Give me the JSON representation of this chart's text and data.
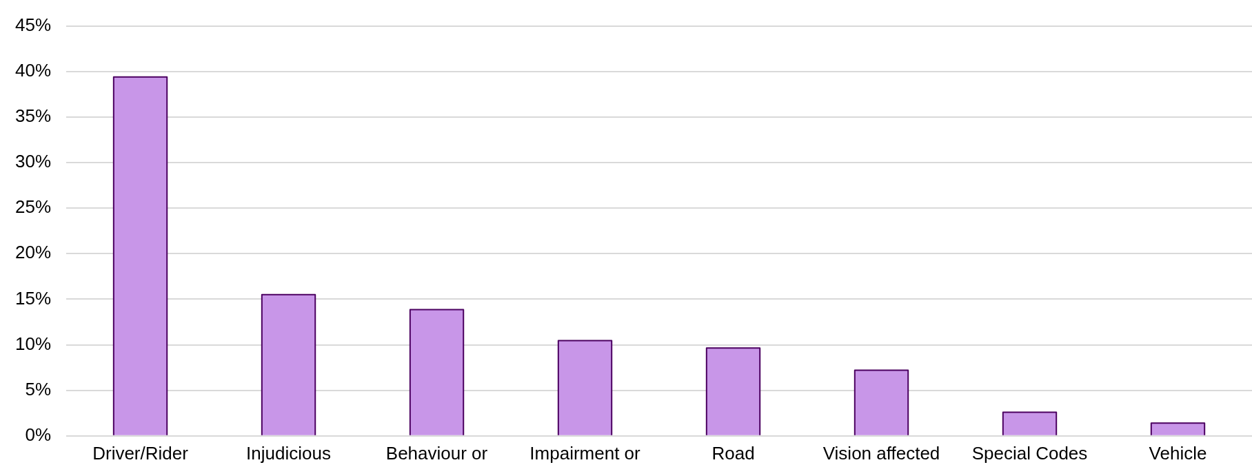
{
  "chart_data": {
    "type": "bar",
    "categories": [
      "Driver/Rider",
      "Injudicious",
      "Behaviour or",
      "Impairment or",
      "Road",
      "Vision affected",
      "Special Codes",
      "Vehicle"
    ],
    "values": [
      39.4,
      15.5,
      13.85,
      10.45,
      9.65,
      7.2,
      2.6,
      1.4
    ],
    "color": "#c896e8",
    "ylim": [
      0,
      45
    ],
    "yticks": [
      {
        "value": 0,
        "label": "0%"
      },
      {
        "value": 5,
        "label": "5%"
      },
      {
        "value": 10,
        "label": "10%"
      },
      {
        "value": 15,
        "label": "15%"
      },
      {
        "value": 20,
        "label": "20%"
      },
      {
        "value": 25,
        "label": "25%"
      },
      {
        "value": 30,
        "label": "30%"
      },
      {
        "value": 35,
        "label": "35%"
      },
      {
        "value": 40,
        "label": "40%"
      },
      {
        "value": 45,
        "label": "45%"
      }
    ],
    "grid": "y"
  }
}
